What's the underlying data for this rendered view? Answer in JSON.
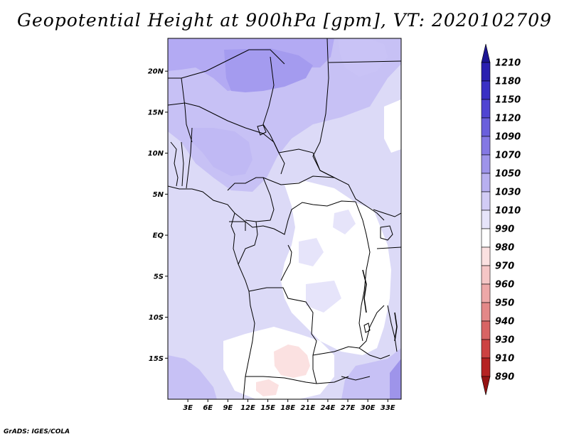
{
  "title": "Geopotential Height at 900hPa [gpm], VT: 2020102709",
  "credit": "GrADS: IGES/COLA",
  "chart_data": {
    "type": "heatmap",
    "variable": "Geopotential Height at 900hPa",
    "units": "gpm",
    "valid_time": "2020102709",
    "lon_range": [
      0,
      35
    ],
    "lat_range": [
      -20,
      24
    ],
    "x_tick_labels": [
      "3E",
      "6E",
      "9E",
      "12E",
      "15E",
      "18E",
      "21E",
      "24E",
      "27E",
      "30E",
      "33E"
    ],
    "x_tick_values": [
      3,
      6,
      9,
      12,
      15,
      18,
      21,
      24,
      27,
      30,
      33
    ],
    "y_tick_labels": [
      "20N",
      "15N",
      "10N",
      "5N",
      "EQ",
      "5S",
      "10S",
      "15S"
    ],
    "y_tick_values": [
      20,
      15,
      10,
      5,
      0,
      -5,
      -10,
      -15
    ],
    "colorbar_levels": [
      "1210",
      "1180",
      "1150",
      "1120",
      "1090",
      "1070",
      "1050",
      "1030",
      "1010",
      "990",
      "980",
      "970",
      "960",
      "950",
      "940",
      "930",
      "910",
      "890"
    ],
    "colorbar_colors": [
      "#1d1593",
      "#2a1fb0",
      "#3a30c4",
      "#5044d2",
      "#6a5fdc",
      "#8478e4",
      "#9e94ea",
      "#b8b0f0",
      "#d2ccf5",
      "#e6e4fa",
      "#ffffff",
      "#fbe1e1",
      "#f5c6c6",
      "#eda8a8",
      "#e38888",
      "#d86464",
      "#cc4242",
      "#b52222",
      "#951313"
    ]
  }
}
